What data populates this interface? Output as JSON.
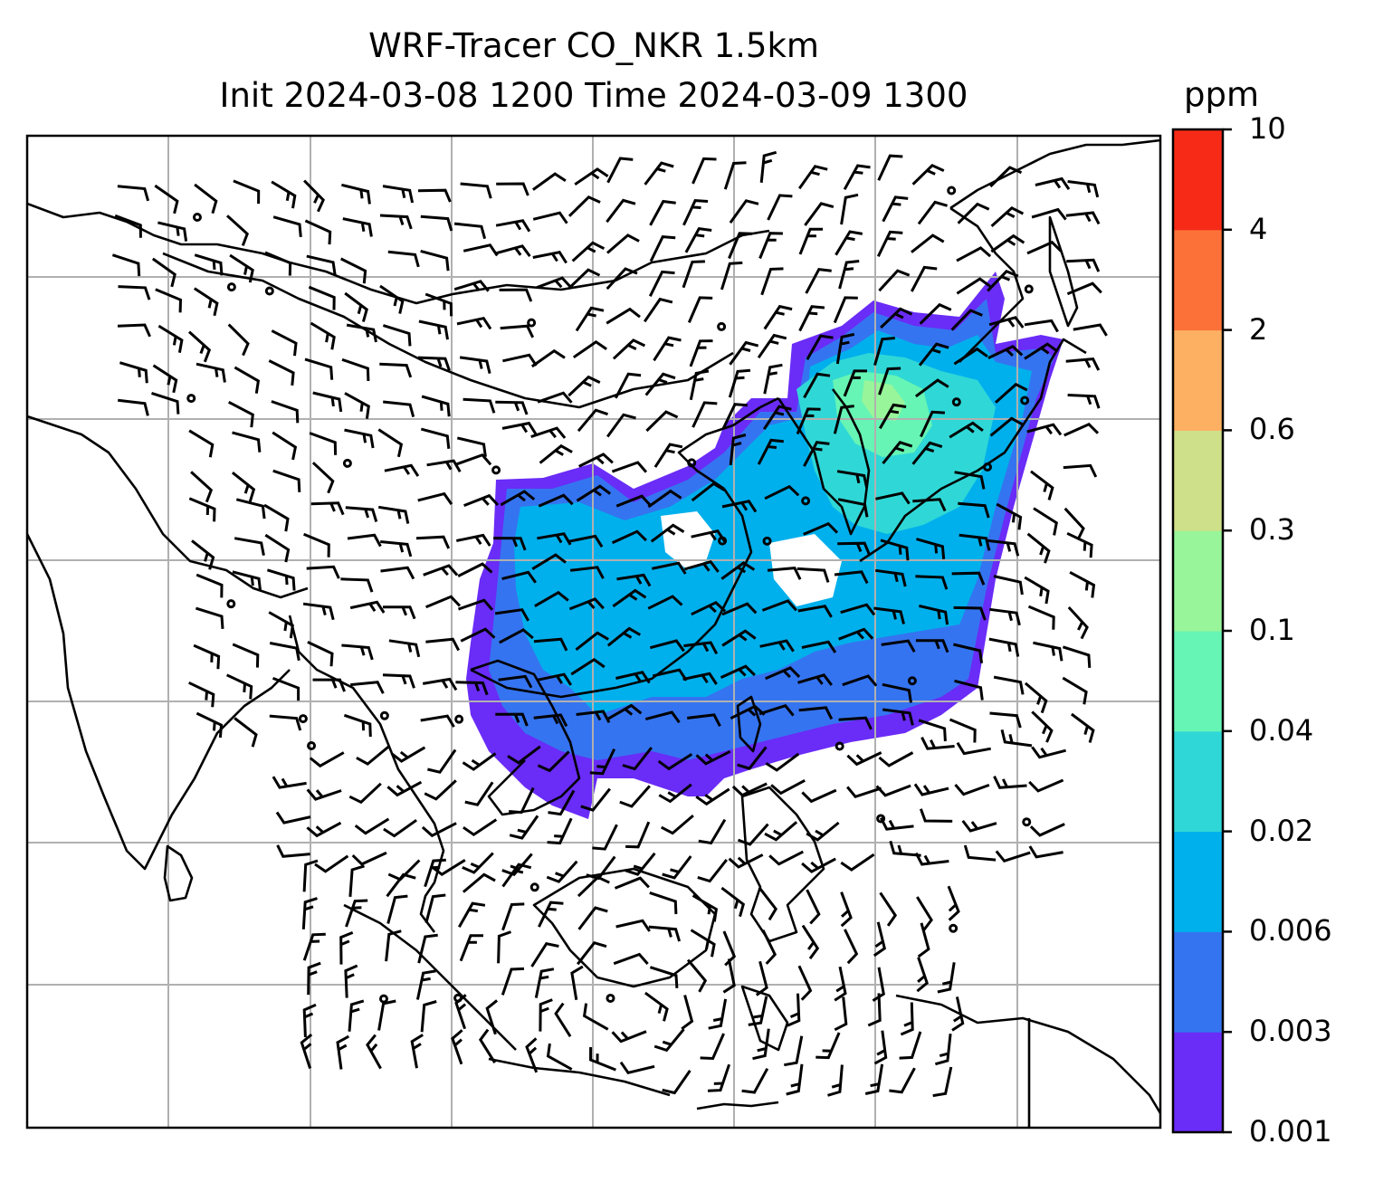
{
  "title": {
    "line1": "WRF-Tracer CO_NKR 1.5km",
    "line2": "Init 2024-03-08 1200 Time 2024-03-09 1300"
  },
  "colorbar": {
    "units": "ppm",
    "levels": [
      "0.001",
      "0.003",
      "0.006",
      "0.02",
      "0.04",
      "0.1",
      "0.3",
      "0.6",
      "2",
      "4",
      "10"
    ],
    "colors": [
      "#6a2cf7",
      "#3574f0",
      "#00b0ec",
      "#2fd8d6",
      "#66f5b4",
      "#98f59a",
      "#cfe08a",
      "#fdb061",
      "#fc7138",
      "#f72a17"
    ]
  },
  "map": {
    "background": "#ffffff",
    "gridline_color": "#b0b0b0",
    "coastline_color": "#000000",
    "wind_barbs": true,
    "gridlines": true
  }
}
